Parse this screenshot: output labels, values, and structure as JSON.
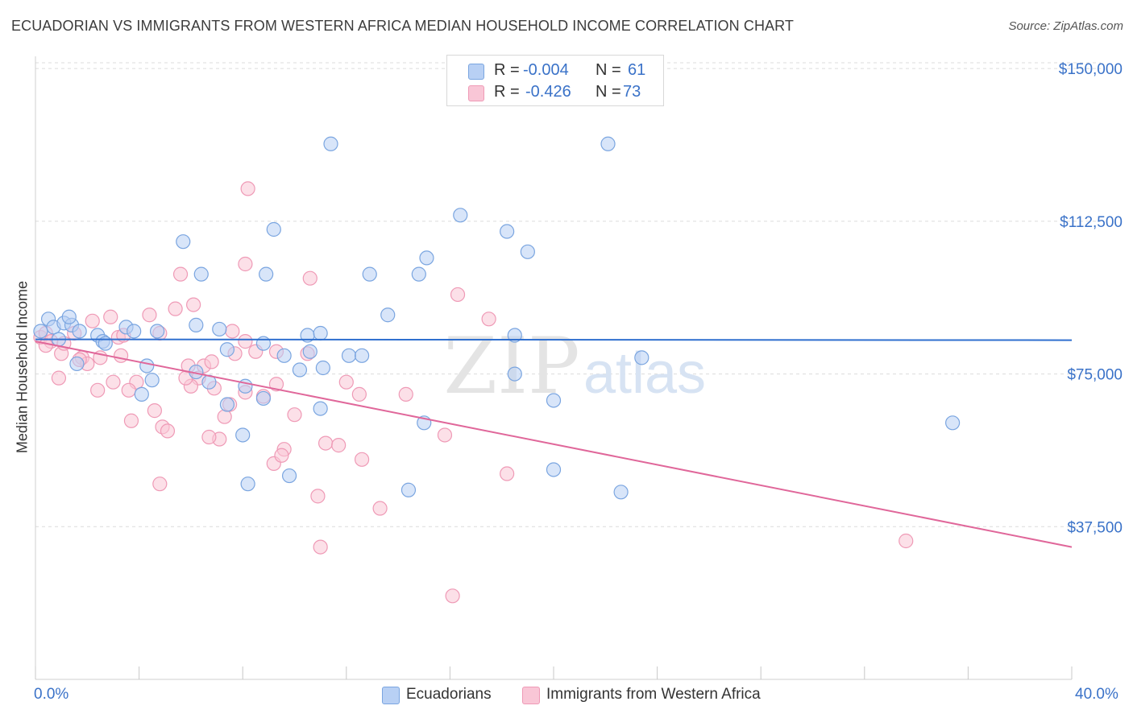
{
  "title": "ECUADORIAN VS IMMIGRANTS FROM WESTERN AFRICA MEDIAN HOUSEHOLD INCOME CORRELATION CHART",
  "source": "Source: ZipAtlas.com",
  "legend": {
    "row1": {
      "r_label": "R =",
      "r_value": "-0.004",
      "n_label": "N =",
      "n_value": "61"
    },
    "row2": {
      "r_label": "R =",
      "r_value": "-0.426",
      "n_label": "N =",
      "n_value": "73"
    }
  },
  "colors": {
    "blue_fill": "#b8d0f4",
    "blue_stroke": "#7aa5e0",
    "blue_line": "#2f6fcf",
    "pink_fill": "#f9c6d6",
    "pink_stroke": "#ef9ab6",
    "pink_line": "#e0679a",
    "grid": "#dcdcdc",
    "tick_text": "#3a72c8"
  },
  "watermark": {
    "zip": "ZIP",
    "atlas": "atlas"
  },
  "chart_data": {
    "type": "scatter",
    "xlabel": "",
    "ylabel": "Median Household Income",
    "xlim": [
      0,
      40
    ],
    "ylim": [
      0,
      153000
    ],
    "x_tick_labels": [
      "0.0%",
      "40.0%"
    ],
    "y_ticks": [
      37500,
      75000,
      112500,
      150000
    ],
    "y_tick_labels": [
      "$37,500",
      "$75,000",
      "$112,500",
      "$150,000"
    ],
    "grid": true,
    "legend_position": "top-center",
    "series": [
      {
        "name": "Ecuadorians",
        "trend": {
          "x": [
            0,
            40
          ],
          "y": [
            83500,
            83300
          ]
        },
        "points": [
          [
            0.2,
            85500
          ],
          [
            0.5,
            88500
          ],
          [
            0.7,
            86500
          ],
          [
            1.1,
            87500
          ],
          [
            1.4,
            87000
          ],
          [
            0.9,
            83500
          ],
          [
            1.7,
            85500
          ],
          [
            2.4,
            84500
          ],
          [
            2.6,
            83000
          ],
          [
            3.5,
            86500
          ],
          [
            1.6,
            77500
          ],
          [
            2.7,
            82500
          ],
          [
            3.8,
            85500
          ],
          [
            4.7,
            85500
          ],
          [
            4.3,
            77000
          ],
          [
            4.5,
            73500
          ],
          [
            4.1,
            70000
          ],
          [
            5.7,
            107500
          ],
          [
            6.4,
            99500
          ],
          [
            6.2,
            87000
          ],
          [
            6.2,
            75500
          ],
          [
            7.1,
            86000
          ],
          [
            7.4,
            81000
          ],
          [
            6.7,
            73000
          ],
          [
            7.4,
            67500
          ],
          [
            8.0,
            60000
          ],
          [
            8.1,
            72000
          ],
          [
            8.8,
            82500
          ],
          [
            8.9,
            99500
          ],
          [
            9.2,
            110500
          ],
          [
            8.8,
            69000
          ],
          [
            9.6,
            79500
          ],
          [
            10.5,
            84500
          ],
          [
            11.0,
            85000
          ],
          [
            10.2,
            76000
          ],
          [
            11.4,
            131500
          ],
          [
            12.1,
            79500
          ],
          [
            12.6,
            79500
          ],
          [
            12.9,
            99500
          ],
          [
            13.6,
            89500
          ],
          [
            14.8,
            99500
          ],
          [
            15.1,
            103500
          ],
          [
            15.0,
            63000
          ],
          [
            16.4,
            114000
          ],
          [
            18.2,
            110000
          ],
          [
            18.5,
            84500
          ],
          [
            18.5,
            75000
          ],
          [
            19.0,
            105000
          ],
          [
            20.0,
            68500
          ],
          [
            20.0,
            51500
          ],
          [
            22.1,
            131500
          ],
          [
            23.4,
            79000
          ],
          [
            22.6,
            46000
          ],
          [
            9.8,
            50000
          ],
          [
            8.2,
            48000
          ],
          [
            11.1,
            76500
          ],
          [
            11.0,
            66500
          ],
          [
            10.6,
            80500
          ],
          [
            14.4,
            46500
          ],
          [
            1.3,
            89000
          ],
          [
            35.4,
            63000
          ]
        ]
      },
      {
        "name": "Immigrants from Western Africa",
        "trend": {
          "x": [
            0,
            40
          ],
          "y": [
            83000,
            32500
          ]
        },
        "points": [
          [
            0.2,
            84000
          ],
          [
            0.4,
            85000
          ],
          [
            0.6,
            83000
          ],
          [
            1.0,
            80000
          ],
          [
            1.5,
            85000
          ],
          [
            0.9,
            74000
          ],
          [
            1.8,
            79000
          ],
          [
            2.2,
            88000
          ],
          [
            2.5,
            79000
          ],
          [
            2.9,
            89000
          ],
          [
            2.4,
            71000
          ],
          [
            3.2,
            84000
          ],
          [
            3.3,
            79500
          ],
          [
            3.0,
            73000
          ],
          [
            3.9,
            73000
          ],
          [
            4.4,
            89500
          ],
          [
            4.8,
            85000
          ],
          [
            5.4,
            91000
          ],
          [
            5.9,
            77000
          ],
          [
            5.6,
            99500
          ],
          [
            6.1,
            92000
          ],
          [
            6.3,
            74000
          ],
          [
            6.5,
            77000
          ],
          [
            6.8,
            78000
          ],
          [
            6.0,
            72000
          ],
          [
            3.7,
            63500
          ],
          [
            4.6,
            66000
          ],
          [
            4.9,
            62000
          ],
          [
            4.8,
            48000
          ],
          [
            5.1,
            61000
          ],
          [
            7.1,
            59000
          ],
          [
            6.7,
            59500
          ],
          [
            7.3,
            64500
          ],
          [
            7.5,
            67500
          ],
          [
            7.6,
            85500
          ],
          [
            7.7,
            80000
          ],
          [
            8.1,
            83000
          ],
          [
            8.5,
            80500
          ],
          [
            8.1,
            70500
          ],
          [
            8.8,
            69500
          ],
          [
            9.2,
            53000
          ],
          [
            9.6,
            56500
          ],
          [
            9.5,
            55000
          ],
          [
            9.3,
            72500
          ],
          [
            10.0,
            65000
          ],
          [
            10.5,
            80000
          ],
          [
            10.6,
            98500
          ],
          [
            10.9,
            45000
          ],
          [
            11.0,
            32500
          ],
          [
            11.2,
            58000
          ],
          [
            11.7,
            57500
          ],
          [
            12.0,
            73000
          ],
          [
            12.5,
            70000
          ],
          [
            12.6,
            54000
          ],
          [
            13.3,
            42000
          ],
          [
            14.3,
            70000
          ],
          [
            15.8,
            60000
          ],
          [
            16.3,
            94500
          ],
          [
            17.5,
            88500
          ],
          [
            18.2,
            50500
          ],
          [
            16.1,
            20500
          ],
          [
            8.2,
            120500
          ],
          [
            8.1,
            102000
          ],
          [
            9.3,
            80500
          ],
          [
            0.4,
            82000
          ],
          [
            1.1,
            82500
          ],
          [
            2.0,
            77500
          ],
          [
            33.6,
            34000
          ],
          [
            3.4,
            84500
          ],
          [
            5.8,
            74000
          ],
          [
            6.9,
            71500
          ],
          [
            1.7,
            78500
          ],
          [
            3.6,
            71000
          ]
        ]
      }
    ]
  },
  "bottom_legend": {
    "item1": "Ecuadorians",
    "item2": "Immigrants from Western Africa"
  }
}
